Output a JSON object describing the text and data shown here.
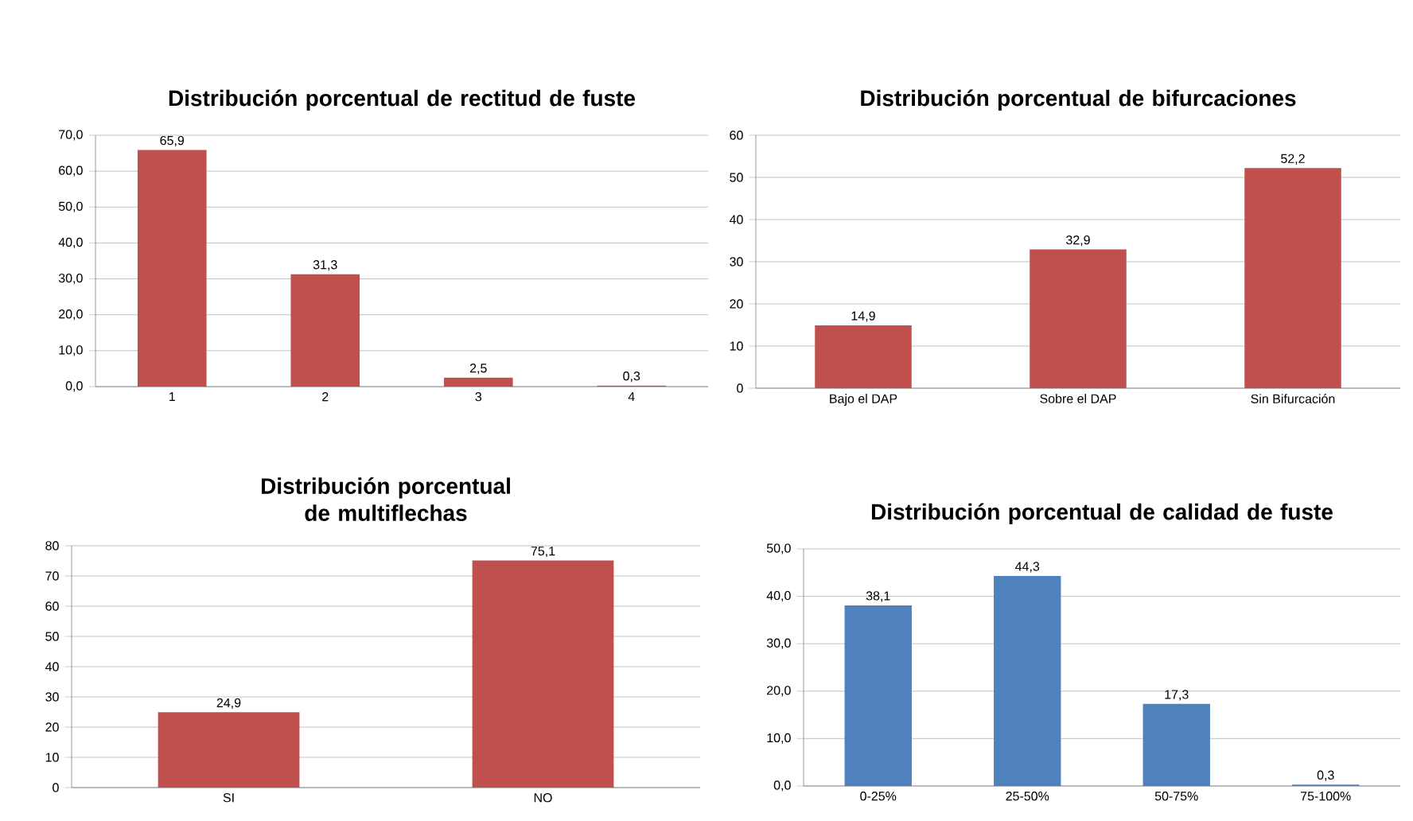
{
  "chart_data": [
    {
      "type": "bar",
      "title": "Distribución porcentual de rectitud de fuste",
      "categories": [
        "1",
        "2",
        "3",
        "4"
      ],
      "values": [
        65.9,
        31.3,
        2.5,
        0.3
      ],
      "value_labels": [
        "65,9",
        "31,3",
        "2,5",
        "0,3"
      ],
      "color": "#c0504d",
      "ylim": [
        0,
        70
      ],
      "yticks": [
        {
          "value": 0,
          "label": "0,0"
        },
        {
          "value": 10,
          "label": "10,0"
        },
        {
          "value": 20,
          "label": "20,0"
        },
        {
          "value": 30,
          "label": "30,0"
        },
        {
          "value": 40,
          "label": "40,0"
        },
        {
          "value": 50,
          "label": "50,0"
        },
        {
          "value": 60,
          "label": "60,0"
        },
        {
          "value": 70,
          "label": "70,0"
        }
      ],
      "grid": "y"
    },
    {
      "type": "bar",
      "title": "Distribución porcentual de bifurcaciones",
      "categories": [
        "Bajo el DAP",
        "Sobre el DAP",
        "Sin Bifurcación"
      ],
      "values": [
        14.9,
        32.9,
        52.2
      ],
      "value_labels": [
        "14,9",
        "32,9",
        "52,2"
      ],
      "color": "#c0504d",
      "ylim": [
        0,
        60
      ],
      "yticks": [
        0,
        10,
        20,
        30,
        40,
        50,
        60
      ],
      "grid": "y"
    },
    {
      "type": "bar",
      "title": "Distribución porcentual de multiflechas",
      "categories": [
        "SI",
        "NO"
      ],
      "values": [
        24.9,
        75.1
      ],
      "value_labels": [
        "24,9",
        "75,1"
      ],
      "color": "#c0504d",
      "ylim": [
        0,
        80
      ],
      "yticks": [
        0,
        10,
        20,
        30,
        40,
        50,
        60,
        70,
        80
      ],
      "grid": "y"
    },
    {
      "type": "bar",
      "title": "Distribución porcentual de calidad de fuste",
      "categories": [
        "0-25%",
        "25-50%",
        "50-75%",
        "75-100%"
      ],
      "values": [
        38.1,
        44.3,
        17.3,
        0.3
      ],
      "value_labels": [
        "38,1",
        "44,3",
        "17,3",
        "0,3"
      ],
      "color": "#4f81bd",
      "ylim": [
        0,
        50
      ],
      "yticks": [
        {
          "value": 0,
          "label": "0,0"
        },
        {
          "value": 10,
          "label": "10,0"
        },
        {
          "value": 20,
          "label": "20,0"
        },
        {
          "value": 30,
          "label": "30,0"
        },
        {
          "value": 40,
          "label": "40,0"
        },
        {
          "value": 50,
          "label": "50,0"
        }
      ],
      "grid": "y"
    }
  ]
}
